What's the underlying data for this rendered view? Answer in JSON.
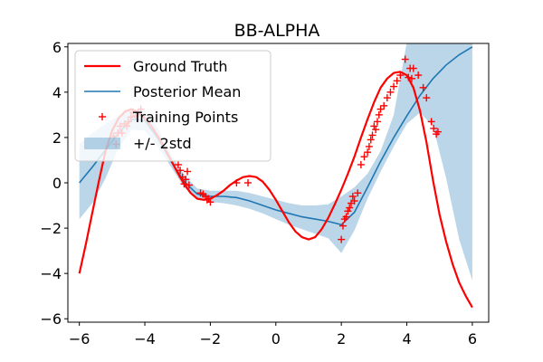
{
  "chart_data": {
    "type": "line",
    "title": "BB-ALPHA",
    "xlabel": "",
    "ylabel": "",
    "xlim": [
      -6.35,
      6.5
    ],
    "ylim": [
      -6.15,
      6.15
    ],
    "xticks": [
      -6,
      -4,
      -2,
      0,
      2,
      4,
      6
    ],
    "yticks": [
      -6,
      -4,
      -2,
      0,
      2,
      4,
      6
    ],
    "xtick_labels": [
      "−6",
      "−4",
      "−2",
      "0",
      "2",
      "4",
      "6"
    ],
    "ytick_labels": [
      "−6",
      "−4",
      "−2",
      "0",
      "2",
      "4",
      "6"
    ],
    "grid": false,
    "legend": {
      "position": "top-left",
      "entries": [
        "Ground Truth",
        "Posterior Mean",
        "Training Points",
        "+/- 2std"
      ]
    },
    "colors": {
      "ground_truth": "#ff0000",
      "posterior_mean": "#1f77b4",
      "training_points": "#ff0000",
      "band": "#1f77b4"
    },
    "series": [
      {
        "name": "Ground Truth",
        "kind": "line",
        "x": [
          -6.0,
          -5.8,
          -5.6,
          -5.4,
          -5.2,
          -5.0,
          -4.8,
          -4.6,
          -4.4,
          -4.2,
          -4.0,
          -3.8,
          -3.6,
          -3.4,
          -3.2,
          -3.0,
          -2.8,
          -2.6,
          -2.4,
          -2.2,
          -2.0,
          -1.8,
          -1.6,
          -1.4,
          -1.2,
          -1.0,
          -0.8,
          -0.6,
          -0.4,
          -0.2,
          0.0,
          0.2,
          0.4,
          0.6,
          0.8,
          1.0,
          1.2,
          1.4,
          1.6,
          1.8,
          2.0,
          2.2,
          2.4,
          2.6,
          2.8,
          3.0,
          3.2,
          3.4,
          3.6,
          3.8,
          4.0,
          4.2,
          4.4,
          4.6,
          4.8,
          5.0,
          5.2,
          5.4,
          5.6,
          5.8,
          6.0
        ],
        "y": [
          -4.0,
          -2.7,
          -1.3,
          0.1,
          1.4,
          2.3,
          2.85,
          3.15,
          3.25,
          3.1,
          2.85,
          2.5,
          2.05,
          1.55,
          1.0,
          0.45,
          -0.05,
          -0.45,
          -0.7,
          -0.75,
          -0.7,
          -0.55,
          -0.35,
          -0.1,
          0.1,
          0.25,
          0.3,
          0.25,
          0.05,
          -0.3,
          -0.75,
          -1.25,
          -1.75,
          -2.15,
          -2.4,
          -2.5,
          -2.4,
          -2.05,
          -1.55,
          -0.95,
          -0.3,
          0.4,
          1.15,
          2.0,
          2.8,
          3.55,
          4.2,
          4.6,
          4.85,
          4.9,
          4.75,
          4.2,
          3.2,
          1.8,
          0.1,
          -1.4,
          -2.6,
          -3.6,
          -4.4,
          -5.0,
          -5.5
        ]
      },
      {
        "name": "Posterior Mean",
        "kind": "line",
        "x": [
          -6.0,
          -5.6,
          -5.2,
          -4.8,
          -4.4,
          -4.0,
          -3.6,
          -3.2,
          -2.8,
          -2.4,
          -2.0,
          -1.6,
          -1.2,
          -0.8,
          -0.4,
          0.0,
          0.4,
          0.8,
          1.2,
          1.6,
          2.0,
          2.4,
          2.8,
          3.2,
          3.6,
          4.0,
          4.4,
          4.8,
          5.2,
          5.6,
          6.0
        ],
        "y": [
          0.0,
          0.7,
          1.45,
          2.2,
          2.8,
          2.75,
          1.95,
          0.95,
          0.05,
          -0.5,
          -0.6,
          -0.6,
          -0.65,
          -0.8,
          -1.0,
          -1.2,
          -1.35,
          -1.5,
          -1.6,
          -1.7,
          -1.85,
          -1.3,
          -0.2,
          0.95,
          2.0,
          2.95,
          3.85,
          4.6,
          5.2,
          5.65,
          6.0
        ]
      },
      {
        "name": "+/- 2std",
        "kind": "band",
        "x": [
          -6.0,
          -5.6,
          -5.2,
          -4.8,
          -4.4,
          -4.0,
          -3.6,
          -3.2,
          -2.8,
          -2.4,
          -2.0,
          -1.6,
          -1.2,
          -0.8,
          -0.4,
          0.0,
          0.4,
          0.8,
          1.2,
          1.6,
          2.0,
          2.4,
          2.8,
          3.2,
          3.6,
          4.0,
          4.4,
          4.8,
          5.2,
          5.6,
          6.0
        ],
        "lower": [
          -1.6,
          -0.9,
          0.2,
          1.55,
          2.35,
          2.3,
          1.6,
          0.7,
          -0.2,
          -0.75,
          -0.85,
          -0.9,
          -1.0,
          -1.15,
          -1.35,
          -1.6,
          -1.85,
          -2.05,
          -2.25,
          -2.45,
          -3.1,
          -2.1,
          -0.7,
          0.5,
          1.6,
          2.6,
          3.1,
          2.5,
          0.2,
          -2.5,
          -4.3
        ],
        "upper": [
          1.7,
          2.2,
          2.6,
          2.95,
          3.25,
          3.2,
          2.4,
          1.25,
          0.35,
          -0.25,
          -0.35,
          -0.35,
          -0.35,
          -0.45,
          -0.6,
          -0.75,
          -0.9,
          -1.0,
          -1.0,
          -0.95,
          -0.6,
          -0.2,
          0.4,
          1.4,
          3.0,
          6.2,
          6.2,
          6.2,
          6.2,
          6.2,
          6.2
        ]
      },
      {
        "name": "Training Points",
        "kind": "scatter",
        "x": [
          -4.95,
          -4.88,
          -4.82,
          -4.75,
          -4.7,
          -4.62,
          -4.55,
          -4.5,
          -4.42,
          -4.35,
          -4.28,
          -4.2,
          -4.12,
          -2.98,
          -2.92,
          -2.85,
          -2.8,
          -2.75,
          -2.7,
          -2.65,
          -2.3,
          -2.22,
          -2.15,
          -2.1,
          -2.05,
          -2.0,
          -1.2,
          -0.85,
          2.0,
          2.05,
          2.1,
          2.15,
          2.2,
          2.25,
          2.3,
          2.35,
          2.4,
          2.5,
          2.6,
          2.7,
          2.8,
          2.85,
          2.9,
          2.95,
          3.0,
          3.05,
          3.1,
          3.15,
          3.2,
          3.3,
          3.4,
          3.5,
          3.6,
          3.7,
          3.8,
          3.95,
          4.05,
          4.1,
          4.15,
          4.2,
          4.35,
          4.5,
          4.6,
          4.75,
          4.82,
          4.9,
          4.95
        ],
        "y": [
          2.05,
          1.7,
          2.2,
          2.5,
          2.2,
          2.6,
          2.5,
          2.7,
          2.9,
          3.1,
          2.95,
          3.1,
          3.25,
          0.8,
          0.55,
          0.25,
          -0.05,
          0.15,
          0.5,
          -0.1,
          -0.45,
          -0.5,
          -0.6,
          -0.75,
          -0.7,
          -0.85,
          0.0,
          0.0,
          -2.5,
          -1.9,
          -1.6,
          -1.5,
          -1.25,
          -1.1,
          -0.9,
          -0.6,
          -0.8,
          -0.45,
          0.8,
          1.15,
          1.35,
          1.6,
          1.9,
          2.1,
          2.5,
          2.35,
          2.7,
          3.0,
          3.25,
          3.4,
          3.75,
          4.0,
          4.25,
          4.5,
          4.75,
          5.45,
          4.65,
          5.05,
          4.6,
          5.05,
          4.75,
          4.2,
          3.75,
          2.7,
          2.4,
          2.15,
          2.25
        ]
      }
    ]
  }
}
